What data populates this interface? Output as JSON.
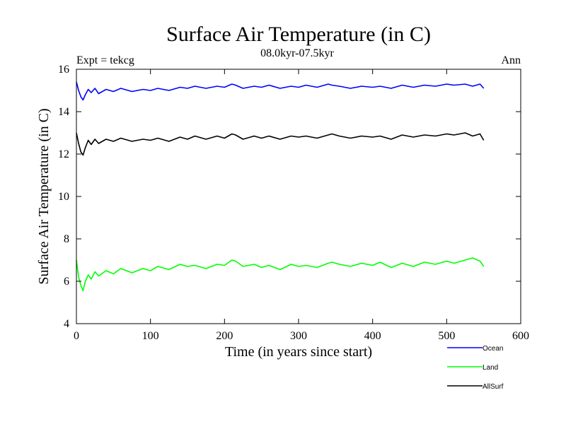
{
  "chart_data": {
    "type": "line",
    "title": "Surface Air Temperature (in C)",
    "subtitle": "08.0kyr-07.5kyr",
    "left_note": "Expt = tekcg",
    "right_note": "Ann",
    "xlabel": "Time (in years since start)",
    "ylabel": "Surface Air Temperature (in C)",
    "xlim": [
      0,
      600
    ],
    "ylim": [
      4,
      16
    ],
    "xticks": [
      0,
      100,
      200,
      300,
      400,
      500,
      600
    ],
    "yticks": [
      4,
      6,
      8,
      10,
      12,
      14,
      16
    ],
    "legend_position": "bottom-right",
    "series": [
      {
        "name": "Ocean",
        "color": "#0000ff",
        "x": [
          0,
          3,
          6,
          9,
          12,
          16,
          20,
          25,
          30,
          40,
          50,
          60,
          75,
          90,
          100,
          110,
          125,
          140,
          150,
          160,
          175,
          190,
          200,
          210,
          215,
          225,
          240,
          250,
          260,
          275,
          290,
          300,
          310,
          325,
          340,
          345,
          355,
          370,
          385,
          400,
          410,
          425,
          440,
          455,
          470,
          485,
          500,
          510,
          525,
          535,
          545,
          550
        ],
        "values": [
          15.4,
          15.0,
          14.7,
          14.55,
          14.8,
          15.05,
          14.9,
          15.1,
          14.85,
          15.05,
          14.95,
          15.1,
          14.95,
          15.05,
          15.0,
          15.1,
          15.0,
          15.15,
          15.1,
          15.2,
          15.1,
          15.2,
          15.15,
          15.3,
          15.25,
          15.1,
          15.2,
          15.15,
          15.25,
          15.1,
          15.2,
          15.15,
          15.25,
          15.15,
          15.3,
          15.25,
          15.2,
          15.1,
          15.2,
          15.15,
          15.2,
          15.1,
          15.25,
          15.15,
          15.25,
          15.2,
          15.3,
          15.25,
          15.3,
          15.2,
          15.3,
          15.1
        ]
      },
      {
        "name": "Land",
        "color": "#00ff00",
        "x": [
          0,
          3,
          6,
          9,
          12,
          16,
          20,
          25,
          30,
          40,
          50,
          60,
          75,
          90,
          100,
          110,
          125,
          140,
          150,
          160,
          175,
          190,
          200,
          210,
          215,
          225,
          240,
          250,
          260,
          275,
          290,
          300,
          310,
          325,
          340,
          345,
          355,
          370,
          385,
          400,
          410,
          425,
          440,
          455,
          470,
          485,
          500,
          510,
          525,
          535,
          545,
          550
        ],
        "values": [
          7.0,
          6.2,
          5.8,
          5.55,
          6.0,
          6.3,
          6.1,
          6.45,
          6.25,
          6.5,
          6.35,
          6.6,
          6.4,
          6.6,
          6.5,
          6.7,
          6.55,
          6.8,
          6.7,
          6.75,
          6.6,
          6.8,
          6.75,
          7.0,
          6.95,
          6.7,
          6.8,
          6.65,
          6.75,
          6.55,
          6.8,
          6.7,
          6.75,
          6.65,
          6.85,
          6.9,
          6.8,
          6.7,
          6.85,
          6.75,
          6.9,
          6.65,
          6.85,
          6.7,
          6.9,
          6.8,
          6.95,
          6.85,
          7.0,
          7.1,
          6.95,
          6.7
        ]
      },
      {
        "name": "AllSurf",
        "color": "#000000",
        "x": [
          0,
          3,
          6,
          9,
          12,
          16,
          20,
          25,
          30,
          40,
          50,
          60,
          75,
          90,
          100,
          110,
          125,
          140,
          150,
          160,
          175,
          190,
          200,
          210,
          215,
          225,
          240,
          250,
          260,
          275,
          290,
          300,
          310,
          325,
          340,
          345,
          355,
          370,
          385,
          400,
          410,
          425,
          440,
          455,
          470,
          485,
          500,
          510,
          525,
          535,
          545,
          550
        ],
        "values": [
          13.0,
          12.5,
          12.1,
          11.95,
          12.3,
          12.65,
          12.45,
          12.7,
          12.5,
          12.7,
          12.6,
          12.75,
          12.6,
          12.7,
          12.65,
          12.75,
          12.6,
          12.8,
          12.7,
          12.85,
          12.7,
          12.85,
          12.75,
          12.95,
          12.9,
          12.7,
          12.85,
          12.75,
          12.85,
          12.7,
          12.85,
          12.8,
          12.85,
          12.75,
          12.9,
          12.95,
          12.85,
          12.75,
          12.85,
          12.8,
          12.85,
          12.7,
          12.9,
          12.8,
          12.9,
          12.85,
          12.95,
          12.9,
          13.0,
          12.85,
          12.95,
          12.65
        ]
      }
    ]
  }
}
